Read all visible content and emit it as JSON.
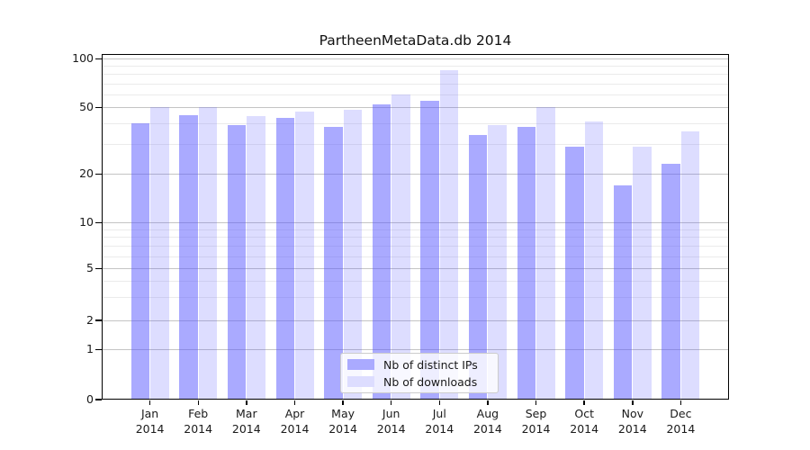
{
  "chart_data": {
    "type": "bar",
    "title": "PartheenMetaData.db 2014",
    "categories": [
      "Jan",
      "Feb",
      "Mar",
      "Apr",
      "May",
      "Jun",
      "Jul",
      "Aug",
      "Sep",
      "Oct",
      "Nov",
      "Dec"
    ],
    "year": "2014",
    "series": [
      {
        "name": "Nb of distinct IPs",
        "color": "#aaaaff",
        "fill": "rgba(85,85,255,0.5)",
        "values": [
          40,
          45,
          39,
          43,
          38,
          52,
          55,
          34,
          38,
          29,
          17,
          23
        ]
      },
      {
        "name": "Nb of downloads",
        "color": "#ddddff",
        "fill": "rgba(85,85,255,0.2)",
        "values": [
          50,
          50,
          44,
          47,
          48,
          60,
          85,
          39,
          50,
          41,
          29,
          36
        ]
      }
    ],
    "y_axis": {
      "scale": "symlog",
      "ticks": [
        0,
        1,
        2,
        5,
        10,
        20,
        50,
        100
      ],
      "minor_gridlines": [
        3,
        4,
        6,
        7,
        8,
        9,
        30,
        40,
        60,
        70,
        80,
        90
      ],
      "range": [
        0,
        110
      ]
    },
    "x_axis": {
      "label_lines": 2
    },
    "legend": {
      "position": "bottom-center"
    },
    "grid": true
  },
  "colors": {
    "major_grid": "#c4c4c4",
    "minor_grid": "#ebebeb",
    "axis": "#000000",
    "text": "#1a1a1a"
  }
}
